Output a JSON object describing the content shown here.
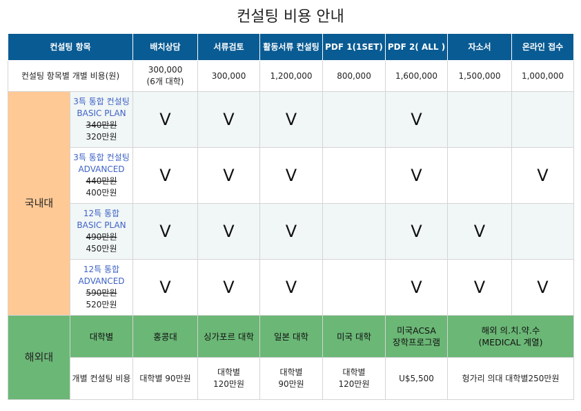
{
  "title": "컨설팅 비용 안내",
  "header": {
    "item": "컨설팅 항목",
    "cols": [
      "배치상담",
      "서류검토",
      "활동서류 컨설팅",
      "PDF 1(1SET)",
      "PDF 2( ALL )",
      "자소서",
      "온라인 접수"
    ]
  },
  "cost_row": {
    "label": "컨설팅 항목별 개별 비용(원)",
    "values": [
      [
        "300,000",
        "(6개 대학)"
      ],
      "300,000",
      "1,200,000",
      "800,000",
      "1,600,000",
      "1,500,000",
      "1,000,000"
    ]
  },
  "domestic": {
    "label": "국내대",
    "plans": [
      {
        "name1": "3특 통합 컨설팅",
        "name2": "BASIC PLAN",
        "old_price": "340만원",
        "price": "320만원",
        "marks": [
          "V",
          "V",
          "V",
          "",
          "V",
          "",
          ""
        ]
      },
      {
        "name1": "3특 통합 컨설팅",
        "name2": "ADVANCED",
        "old_price": "440만원",
        "price": "400만원",
        "marks": [
          "V",
          "V",
          "V",
          "",
          "V",
          "",
          "V"
        ]
      },
      {
        "name1": "12특 통합",
        "name2": "BASIC PLAN",
        "old_price": "490만원",
        "price": "450만원",
        "marks": [
          "V",
          "V",
          "V",
          "",
          "V",
          "V",
          ""
        ]
      },
      {
        "name1": "12특 통합",
        "name2": "ADVANCED",
        "old_price": "590만원",
        "price": "520만원",
        "marks": [
          "V",
          "V",
          "V",
          "",
          "V",
          "V",
          "V"
        ]
      }
    ]
  },
  "overseas": {
    "label": "해외대",
    "header_label": "대학별",
    "headers": [
      "홍콩대",
      "싱가포르 대학",
      "일본 대학",
      "미국 대학",
      [
        "미국ACSA",
        "장학프로그램"
      ],
      [
        "해외 의.치.약.수",
        "(MEDICAL 계열)"
      ]
    ],
    "cost_label": "개별 컨설팅 비용",
    "costs": [
      "대학별 90만원",
      [
        "대학별",
        "120만원"
      ],
      [
        "대학별",
        "90만원"
      ],
      [
        "대학별",
        "120만원"
      ],
      "U$5,500",
      "헝가리 의대 대학별250만원"
    ]
  },
  "colors": {
    "header_bg": "#095b93",
    "domestic_bg": "#ffc995",
    "overseas_bg": "#6bb776",
    "plan_name": "#3e62c6",
    "shade_row": "#f1f6f6"
  }
}
